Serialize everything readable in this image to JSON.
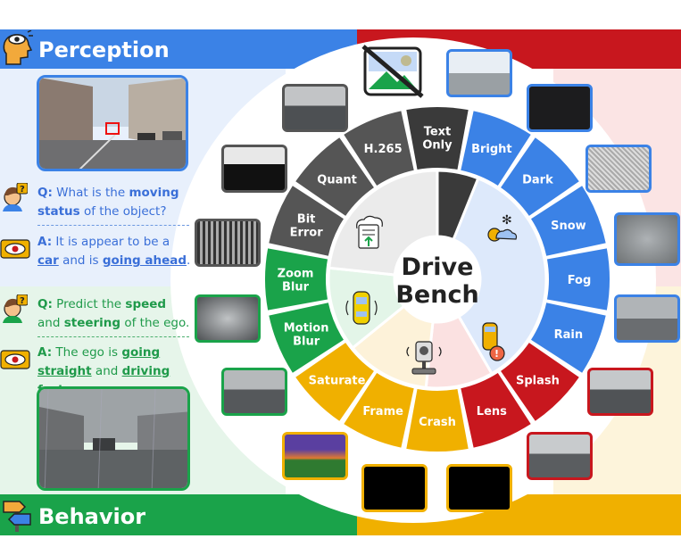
{
  "sections": {
    "perception": {
      "title": "Perception"
    },
    "behavior": {
      "title": "Behavior"
    }
  },
  "qa": {
    "perception_q": {
      "prefix": "Q:",
      "t1": " What is the ",
      "b1": "moving",
      "t2": "",
      "b2": "status",
      "t3": " of the object?"
    },
    "perception_a": {
      "prefix": "A:",
      "t1": " It is appear to be a ",
      "u1": "car",
      "t2": " and is ",
      "u2": "going ahead",
      "t3": "."
    },
    "behavior_q": {
      "prefix": "Q:",
      "t1": " Predict the ",
      "b1": "speed",
      "t2": " and ",
      "b2": "steering",
      "t3": " of the ego."
    },
    "behavior_a": {
      "prefix": "A:",
      "t1": " The ego is ",
      "u1": "going",
      "t2": "",
      "u2": "straight",
      "t3": " and ",
      "u3": "driving fast",
      "t4": "."
    }
  },
  "center": {
    "line1": "Drive",
    "line2": "Bench"
  },
  "segments": [
    {
      "label": "Text Only",
      "color": "#3a3a3a"
    },
    {
      "label": "Bright",
      "color": "#3b82e6"
    },
    {
      "label": "Dark",
      "color": "#3b82e6"
    },
    {
      "label": "Snow",
      "color": "#3b82e6"
    },
    {
      "label": "Fog",
      "color": "#3b82e6"
    },
    {
      "label": "Rain",
      "color": "#3b82e6"
    },
    {
      "label": "Splash",
      "color": "#c8171e"
    },
    {
      "label": "Lens",
      "color": "#c8171e"
    },
    {
      "label": "Crash",
      "color": "#f0b000"
    },
    {
      "label": "Frame",
      "color": "#f0b000"
    },
    {
      "label": "Saturate",
      "color": "#f0b000"
    },
    {
      "label": "Motion Blur",
      "color": "#1aa34a"
    },
    {
      "label": "Zoom Blur",
      "color": "#1aa34a"
    },
    {
      "label": "Bit Error",
      "color": "#555555"
    },
    {
      "label": "Quant",
      "color": "#555555"
    },
    {
      "label": "H.265",
      "color": "#555555"
    }
  ],
  "colors": {
    "blue": "#3b82e6",
    "red": "#c8171e",
    "yellow": "#f0b000",
    "green": "#1aa34a",
    "gray": "#555555",
    "dark": "#3a3a3a"
  },
  "icons": {
    "no_image": "no-image-icon",
    "weather": "weather-icon",
    "collision": "collision-icon",
    "camera": "camera-icon",
    "vehicle_motion": "vehicle-motion-icon",
    "compression": "cloud-compression-icon",
    "perception": "eye-head-icon",
    "behavior": "road-sign-icon"
  }
}
